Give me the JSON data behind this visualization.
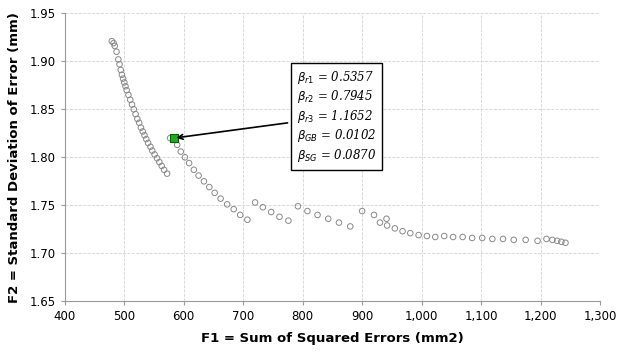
{
  "xlabel": "F1 = Sum of Squared Errors (mm2)",
  "ylabel": "F2 = Standard Deviation of Error (mm)",
  "xlim": [
    400,
    1300
  ],
  "ylim": [
    1.65,
    1.95
  ],
  "xticks": [
    400,
    500,
    600,
    700,
    800,
    900,
    1000,
    1100,
    1200,
    1300
  ],
  "xtick_labels": [
    "400",
    "500",
    "600",
    "700",
    "800",
    "900",
    "1,000",
    "1,100",
    "1,200",
    "1,300"
  ],
  "yticks": [
    1.65,
    1.7,
    1.75,
    1.8,
    1.85,
    1.9,
    1.95
  ],
  "selected_x": 583,
  "selected_y": 1.82,
  "bg_color": "#ffffff",
  "grid_color": "#d3d3d3",
  "scatter_x": [
    479,
    482,
    484,
    487,
    490,
    492,
    494,
    496,
    498,
    500,
    502,
    504,
    507,
    510,
    513,
    516,
    519,
    522,
    525,
    528,
    531,
    534,
    537,
    540,
    544,
    547,
    551,
    555,
    559,
    563,
    567,
    572,
    577,
    583,
    589,
    595,
    602,
    609,
    617,
    625,
    634,
    643,
    652,
    662,
    673,
    684,
    695,
    707,
    720,
    733,
    747,
    761,
    776,
    792,
    808,
    825,
    843,
    861,
    880,
    900,
    920,
    941,
    930,
    942,
    955,
    968,
    981,
    995,
    1009,
    1023,
    1038,
    1053,
    1069,
    1085,
    1102,
    1119,
    1137,
    1155,
    1175,
    1195,
    1210,
    1220,
    1228,
    1235,
    1242
  ],
  "scatter_y": [
    1.921,
    1.919,
    1.916,
    1.91,
    1.902,
    1.897,
    1.891,
    1.886,
    1.882,
    1.878,
    1.874,
    1.87,
    1.865,
    1.86,
    1.855,
    1.85,
    1.845,
    1.84,
    1.836,
    1.831,
    1.827,
    1.823,
    1.819,
    1.815,
    1.811,
    1.807,
    1.803,
    1.799,
    1.795,
    1.791,
    1.787,
    1.783,
    1.82,
    1.82,
    1.813,
    1.806,
    1.8,
    1.794,
    1.787,
    1.781,
    1.775,
    1.769,
    1.763,
    1.757,
    1.751,
    1.746,
    1.74,
    1.735,
    1.753,
    1.748,
    1.743,
    1.738,
    1.734,
    1.749,
    1.744,
    1.74,
    1.736,
    1.732,
    1.728,
    1.744,
    1.74,
    1.736,
    1.732,
    1.729,
    1.726,
    1.723,
    1.721,
    1.719,
    1.718,
    1.717,
    1.718,
    1.717,
    1.717,
    1.716,
    1.716,
    1.715,
    1.715,
    1.714,
    1.714,
    1.713,
    1.715,
    1.714,
    1.713,
    1.712,
    1.711
  ],
  "annot_text": "β_{r1} = 0.5357\nβ_{r2} = 0.7945\nβ_{r3} = 1.1652\nβ_{GB} = 0.0102\nβ_{SG} = 0.0870"
}
